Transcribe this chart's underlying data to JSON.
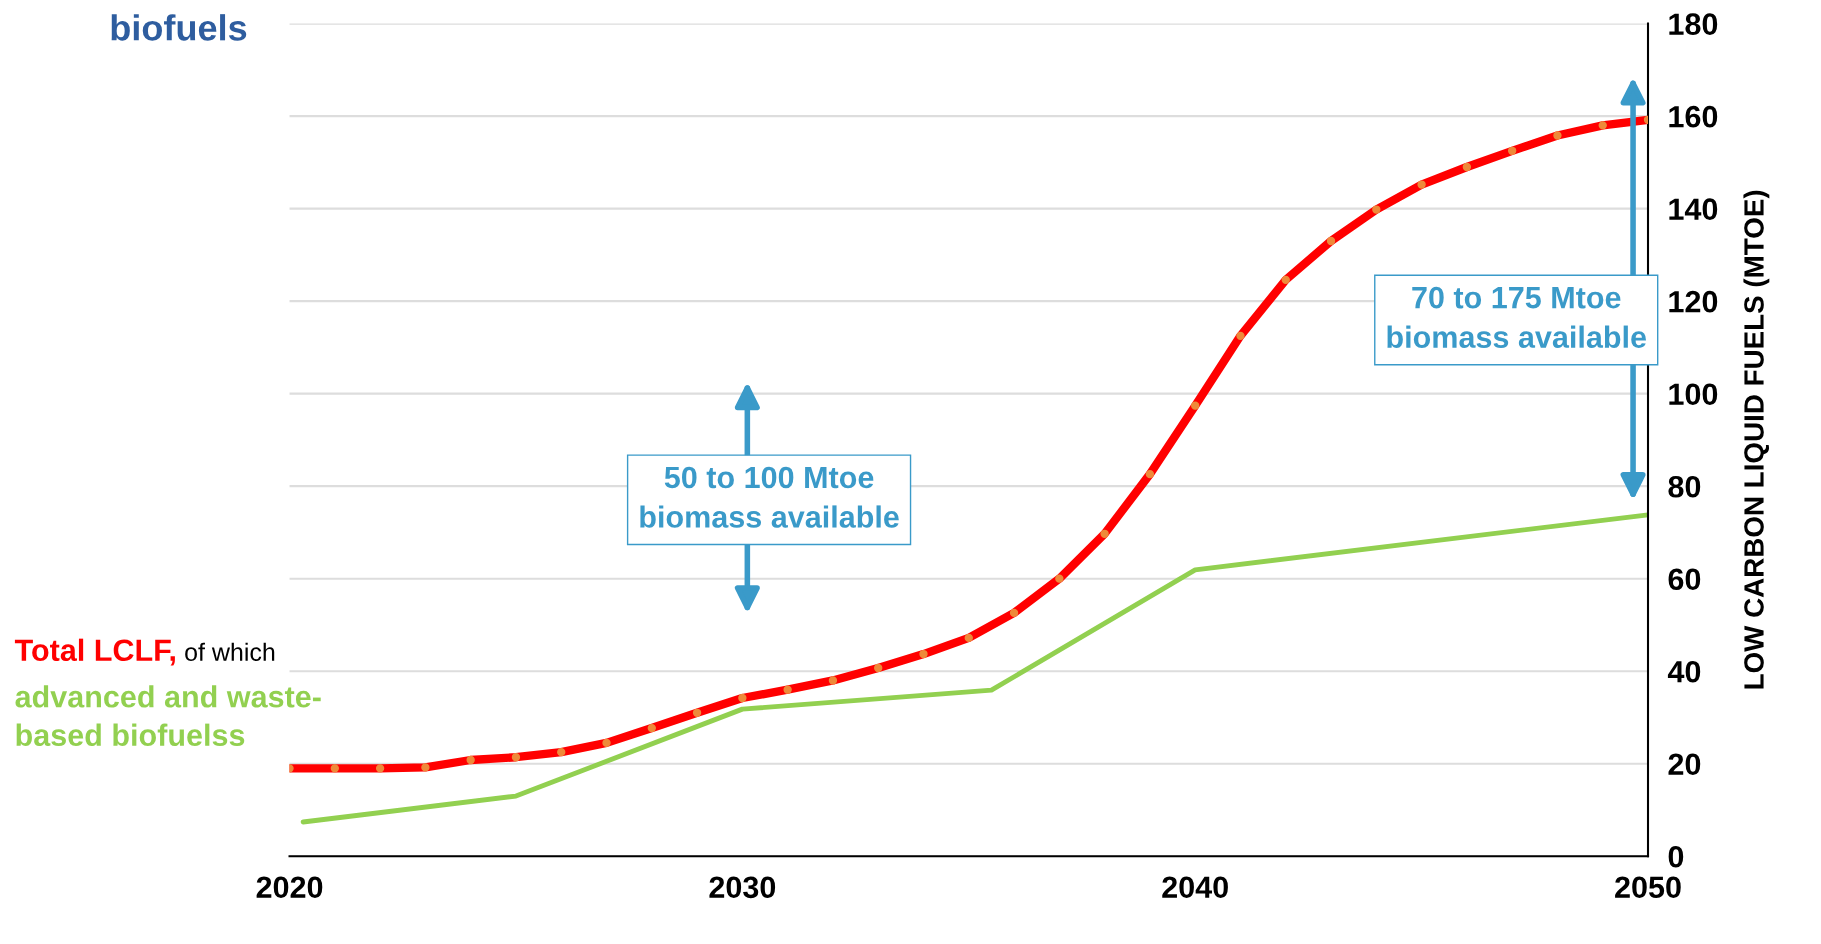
{
  "chart_data": {
    "type": "line",
    "title": "biofuels",
    "ylabel": "LOW CARBON LIQUID FUELS (MTOE)",
    "xlim": [
      2020,
      2050
    ],
    "xticks": [
      2020,
      2030,
      2040,
      2050
    ],
    "ylim": [
      0,
      180
    ],
    "yticks": [
      0,
      20,
      40,
      60,
      80,
      100,
      120,
      140,
      160,
      180
    ],
    "grid": "y",
    "legend": false,
    "series": [
      {
        "name": "Total LCLF,",
        "color": "#ff0000",
        "marker": "circle",
        "x": [
          2020,
          2021,
          2022,
          2023,
          2024,
          2025,
          2026,
          2027,
          2028,
          2029,
          2030,
          2031,
          2032,
          2033,
          2034,
          2035,
          2036,
          2037,
          2038,
          2039,
          2040,
          2041,
          2042,
          2043,
          2044,
          2045,
          2046,
          2047,
          2048,
          2049,
          2050
        ],
        "values": [
          19,
          19,
          19,
          19.2,
          20.8,
          21.4,
          22.5,
          24.5,
          27.7,
          31,
          34.2,
          36,
          38,
          40.7,
          43.7,
          47.2,
          52.6,
          60,
          69.7,
          82.6,
          97.4,
          112.5,
          124.6,
          133,
          139.8,
          145.2,
          149,
          152.5,
          155.8,
          158,
          159.2
        ]
      },
      {
        "name": "advanced and waste-\nbased biofuelss",
        "color": "#92d050",
        "marker": "none",
        "x": [
          2020.3,
          2025,
          2030,
          2035.5,
          2040,
          2050
        ],
        "values": [
          7.4,
          13,
          31.8,
          35.9,
          61.9,
          73.8
        ]
      }
    ],
    "annotations": [
      "of which",
      "50 to 100 Mtoe\nbiomass available",
      "70 to 175 Mtoe\nbiomass available"
    ]
  }
}
